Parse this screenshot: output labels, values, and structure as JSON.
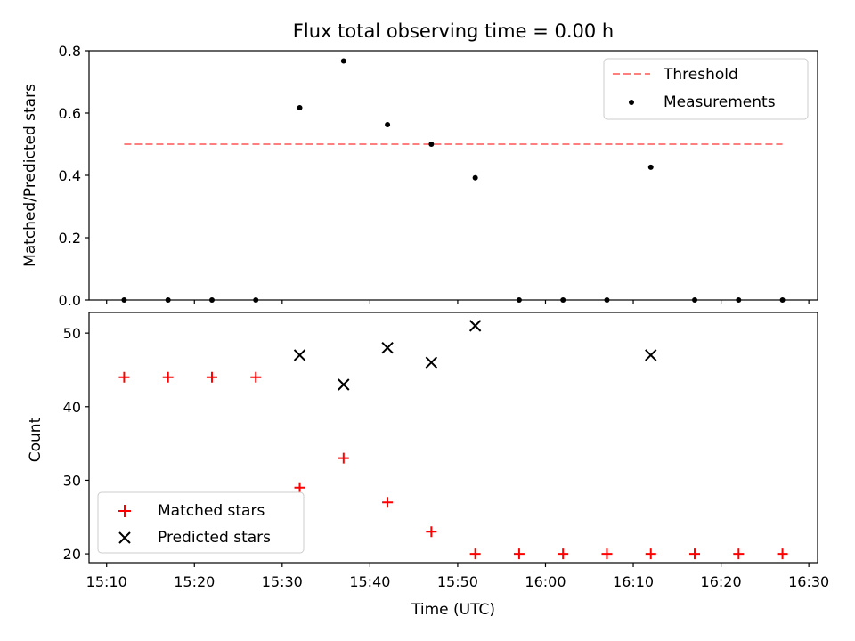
{
  "chart_data": [
    {
      "type": "scatter",
      "title": "Flux total observing time = 0.00 h",
      "xlabel": "",
      "ylabel": "Matched/Predicted stars",
      "xlim": [
        "15:08",
        "16:31"
      ],
      "ylim": [
        0,
        0.8
      ],
      "yticks": [
        "0.0",
        "0.2",
        "0.4",
        "0.6",
        "0.8"
      ],
      "grid": false,
      "legend_position": "top-right",
      "series": [
        {
          "name": "Threshold",
          "kind": "dashed-line",
          "color": "#ff7f7f",
          "x": [
            "15:12",
            "16:27"
          ],
          "y": [
            0.5,
            0.5
          ]
        },
        {
          "name": "Measurements",
          "kind": "dots",
          "color": "#000000",
          "x": [
            "15:12",
            "15:17",
            "15:22",
            "15:27",
            "15:32",
            "15:37",
            "15:42",
            "15:47",
            "15:52",
            "15:57",
            "16:02",
            "16:07",
            "16:12",
            "16:17",
            "16:22",
            "16:27"
          ],
          "y": [
            0,
            0,
            0,
            0,
            0.617,
            0.767,
            0.563,
            0.5,
            0.392,
            0,
            0,
            0,
            0.426,
            0,
            0,
            0
          ]
        }
      ]
    },
    {
      "type": "scatter",
      "title": "",
      "xlabel": "Time (UTC)",
      "ylabel": "Count",
      "xlim": [
        "15:08",
        "16:31"
      ],
      "ylim": [
        18.8,
        52.8
      ],
      "xticks": [
        "15:10",
        "15:20",
        "15:30",
        "15:40",
        "15:50",
        "16:00",
        "16:10",
        "16:20",
        "16:30"
      ],
      "yticks": [
        "20",
        "30",
        "40",
        "50"
      ],
      "grid": false,
      "legend_position": "bottom-left",
      "series": [
        {
          "name": "Matched stars",
          "marker": "plus",
          "color": "#ff0000",
          "x": [
            "15:12",
            "15:17",
            "15:22",
            "15:27",
            "15:32",
            "15:37",
            "15:42",
            "15:47",
            "15:52",
            "15:57",
            "16:02",
            "16:07",
            "16:12",
            "16:17",
            "16:22",
            "16:27"
          ],
          "y": [
            44,
            44,
            44,
            44,
            29,
            33,
            27,
            23,
            20,
            20,
            20,
            20,
            20,
            20,
            20,
            20
          ]
        },
        {
          "name": "Predicted stars",
          "marker": "x",
          "color": "#000000",
          "x": [
            "15:32",
            "15:37",
            "15:42",
            "15:47",
            "15:52",
            "16:12"
          ],
          "y": [
            47,
            43,
            48,
            46,
            51,
            47
          ]
        }
      ]
    }
  ]
}
